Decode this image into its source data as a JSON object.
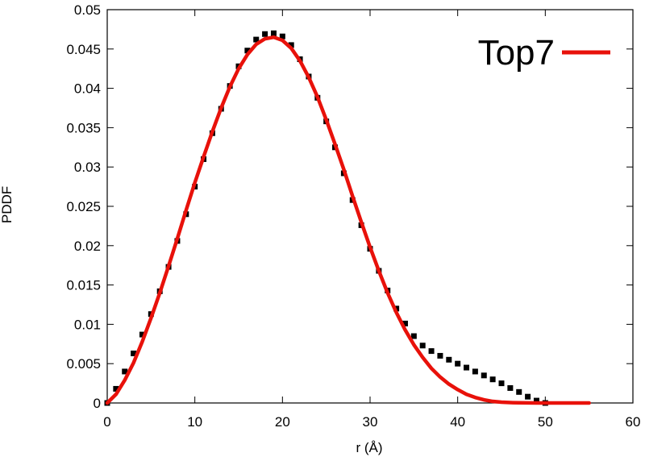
{
  "chart_data": {
    "type": "scatter",
    "title": "",
    "xlabel": "r (Å)",
    "ylabel": "PDDF",
    "xlim": [
      0,
      60
    ],
    "ylim": [
      0,
      0.05
    ],
    "x_ticks": [
      0,
      10,
      20,
      30,
      40,
      50,
      60
    ],
    "y_ticks": [
      0,
      0.005,
      0.01,
      0.015,
      0.02,
      0.025,
      0.03,
      0.035,
      0.04,
      0.045,
      0.05
    ],
    "x_tick_labels": [
      "0",
      "10",
      "20",
      "30",
      "40",
      "50",
      "60"
    ],
    "y_tick_labels": [
      "0",
      "0.005",
      "0.01",
      "0.015",
      "0.02",
      "0.025",
      "0.03",
      "0.035",
      "0.04",
      "0.045",
      "0.05"
    ],
    "grid": false,
    "legend": {
      "position": "top-right",
      "entries": [
        "Top7"
      ]
    },
    "series": [
      {
        "kind": "points",
        "color": "#000000",
        "x": [
          0,
          1,
          2,
          3,
          4,
          5,
          6,
          7,
          8,
          9,
          10,
          11,
          12,
          13,
          14,
          15,
          16,
          17,
          18,
          19,
          20,
          21,
          22,
          23,
          24,
          25,
          26,
          27,
          28,
          29,
          30,
          31,
          32,
          33,
          34,
          35,
          36,
          37,
          38,
          39,
          40,
          41,
          42,
          43,
          44,
          45,
          46,
          47,
          48,
          49,
          50
        ],
        "y": [
          0.0,
          0.0018,
          0.004,
          0.0063,
          0.0087,
          0.0113,
          0.0142,
          0.0173,
          0.0206,
          0.024,
          0.0275,
          0.031,
          0.0343,
          0.0374,
          0.0403,
          0.0428,
          0.0448,
          0.0462,
          0.0469,
          0.047,
          0.0466,
          0.0455,
          0.0437,
          0.0415,
          0.0388,
          0.0358,
          0.0325,
          0.0292,
          0.0258,
          0.0226,
          0.0196,
          0.0168,
          0.0143,
          0.012,
          0.0101,
          0.0085,
          0.0073,
          0.0066,
          0.006,
          0.0055,
          0.005,
          0.0045,
          0.004,
          0.0035,
          0.003,
          0.0025,
          0.0019,
          0.0014,
          0.0008,
          0.0003,
          0.0
        ]
      },
      {
        "name": "Top7",
        "kind": "line",
        "color": "#e8110a",
        "x": [
          0,
          1,
          2,
          3,
          4,
          5,
          6,
          7,
          8,
          9,
          10,
          11,
          12,
          13,
          14,
          15,
          16,
          17,
          18,
          19,
          20,
          21,
          22,
          23,
          24,
          25,
          26,
          27,
          28,
          29,
          30,
          31,
          32,
          33,
          34,
          35,
          36,
          37,
          38,
          39,
          40,
          41,
          42,
          43,
          44,
          45,
          46,
          47,
          48,
          49,
          50,
          51,
          52,
          53,
          54,
          55
        ],
        "y": [
          0.0,
          0.0011,
          0.0029,
          0.0051,
          0.0078,
          0.0108,
          0.014,
          0.0174,
          0.0209,
          0.0245,
          0.028,
          0.0313,
          0.0345,
          0.0375,
          0.0402,
          0.0425,
          0.0443,
          0.0456,
          0.0463,
          0.0465,
          0.0461,
          0.0451,
          0.0435,
          0.0414,
          0.0389,
          0.036,
          0.0329,
          0.0297,
          0.0263,
          0.023,
          0.0198,
          0.0168,
          0.014,
          0.0115,
          0.0093,
          0.0074,
          0.0058,
          0.0044,
          0.0033,
          0.0024,
          0.0017,
          0.0011,
          0.0007,
          0.0004,
          0.0002,
          0.0001,
          5e-05,
          2e-05,
          1e-05,
          0,
          0,
          0,
          0,
          0,
          0,
          0
        ]
      }
    ]
  }
}
